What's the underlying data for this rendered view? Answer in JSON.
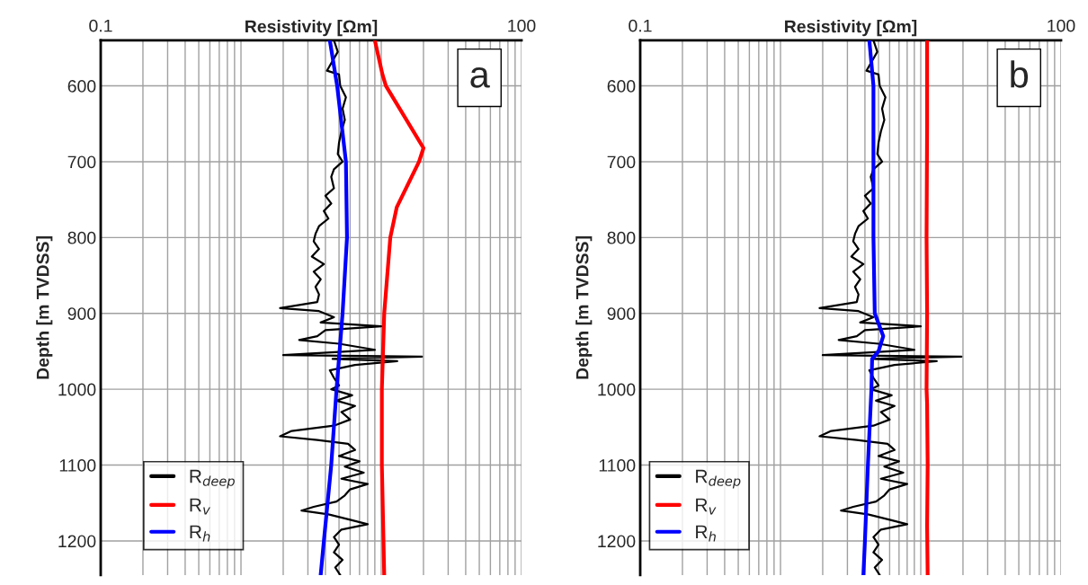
{
  "chart_data": [
    {
      "type": "line",
      "xlabel": "Resistivity [Ωm]",
      "ylabel": "Depth [m TVDSS]",
      "log": "x",
      "grid": true,
      "legend": "bottom left",
      "xlim": [
        0.1,
        100
      ],
      "ylim": [
        1245,
        540
      ],
      "xticks": [
        {
          "value": 0.1,
          "label": "0.1"
        },
        {
          "value": 0.2,
          "label": null
        },
        {
          "value": 0.3,
          "label": null
        },
        {
          "value": 0.4,
          "label": null
        },
        {
          "value": 0.5,
          "label": null
        },
        {
          "value": 0.6,
          "label": null
        },
        {
          "value": 0.7,
          "label": null
        },
        {
          "value": 0.8,
          "label": null
        },
        {
          "value": 0.9,
          "label": null
        },
        {
          "value": 1,
          "label": null
        },
        {
          "value": 2,
          "label": null
        },
        {
          "value": 3,
          "label": null
        },
        {
          "value": 4,
          "label": null
        },
        {
          "value": 5,
          "label": null
        },
        {
          "value": 6,
          "label": null
        },
        {
          "value": 7,
          "label": null
        },
        {
          "value": 8,
          "label": null
        },
        {
          "value": 9,
          "label": null
        },
        {
          "value": 10,
          "label": null
        },
        {
          "value": 20,
          "label": null
        },
        {
          "value": 30,
          "label": null
        },
        {
          "value": 40,
          "label": null
        },
        {
          "value": 50,
          "label": null
        },
        {
          "value": 60,
          "label": null
        },
        {
          "value": 70,
          "label": null
        },
        {
          "value": 80,
          "label": null
        },
        {
          "value": 90,
          "label": null
        },
        {
          "value": 100,
          "label": "100"
        }
      ],
      "yticks": [
        600,
        700,
        800,
        900,
        1000,
        1100,
        1200
      ],
      "annotations": [
        "a"
      ],
      "series": [
        {
          "name": "R$_{deep}$",
          "color": "#000000",
          "x": [
            4.6,
            4.9,
            4.1,
            5.0,
            5.1,
            5.6,
            5.3,
            5.5,
            5.2,
            5.0,
            4.9,
            5.3,
            4.6,
            4.4,
            4.6,
            4.0,
            4.4,
            3.9,
            4.2,
            3.6,
            3.4,
            3.3,
            3.6,
            3.2,
            3.9,
            3.3,
            3.7,
            3.4,
            3.6,
            3.5,
            1.9,
            3.6,
            4.6,
            3.7,
            10,
            4.0,
            3.5,
            2.6,
            5.0,
            9.0,
            2.0,
            19.5,
            4.5,
            13,
            6.5,
            4.3,
            4.6,
            5.0,
            4.4,
            6.2,
            4.8,
            6.5,
            5.2,
            6.0,
            4.6,
            2.3,
            1.9,
            3.5,
            5.8,
            6.5,
            5.0,
            7.0,
            5.5,
            7.5,
            5.2,
            8.0,
            6.0,
            5.5,
            4.8,
            3.3,
            2.7,
            4.2,
            6.0,
            8.0,
            5.2,
            4.6,
            5.0,
            4.6,
            5.3,
            4.7,
            5.1
          ],
          "values": [
            540,
            555,
            580,
            585,
            600,
            615,
            630,
            645,
            660,
            675,
            690,
            700,
            710,
            720,
            735,
            745,
            755,
            765,
            775,
            785,
            795,
            805,
            815,
            825,
            835,
            845,
            855,
            865,
            875,
            885,
            893,
            897,
            905,
            912,
            917,
            922,
            930,
            935,
            940,
            948,
            955,
            957,
            960,
            963,
            968,
            975,
            985,
            995,
            1000,
            1008,
            1015,
            1022,
            1030,
            1040,
            1048,
            1055,
            1062,
            1067,
            1072,
            1080,
            1088,
            1095,
            1102,
            1110,
            1118,
            1125,
            1132,
            1140,
            1148,
            1155,
            1160,
            1165,
            1172,
            1178,
            1185,
            1195,
            1205,
            1215,
            1225,
            1235,
            1245
          ]
        },
        {
          "name": "R$_{v}$",
          "color": "#ff0000",
          "x": [
            9.0,
            10.2,
            10.8,
            20,
            18.6,
            12.9,
            11.6,
            10.5,
            10.1,
            10.1,
            10.5
          ],
          "values": [
            540,
            585,
            600,
            682,
            700,
            760,
            800,
            900,
            1000,
            1100,
            1245
          ]
        },
        {
          "name": "R$_{h}$",
          "color": "#0000ff",
          "x": [
            4.3,
            4.85,
            5.6,
            5.7,
            5.3,
            4.8,
            4.4,
            3.9,
            3.7
          ],
          "values": [
            540,
            600,
            700,
            800,
            900,
            1000,
            1100,
            1200,
            1245
          ]
        }
      ]
    },
    {
      "type": "line",
      "xlabel": "Resistivity [Ωm]",
      "ylabel": "Depth [m TVDSS]",
      "log": "x",
      "grid": true,
      "legend": "bottom left",
      "xlim": [
        0.1,
        100
      ],
      "ylim": [
        1245,
        540
      ],
      "xticks": [
        {
          "value": 0.1,
          "label": "0.1"
        },
        {
          "value": 0.2,
          "label": null
        },
        {
          "value": 0.3,
          "label": null
        },
        {
          "value": 0.4,
          "label": null
        },
        {
          "value": 0.5,
          "label": null
        },
        {
          "value": 0.6,
          "label": null
        },
        {
          "value": 0.7,
          "label": null
        },
        {
          "value": 0.8,
          "label": null
        },
        {
          "value": 0.9,
          "label": null
        },
        {
          "value": 1,
          "label": null
        },
        {
          "value": 2,
          "label": null
        },
        {
          "value": 3,
          "label": null
        },
        {
          "value": 4,
          "label": null
        },
        {
          "value": 5,
          "label": null
        },
        {
          "value": 6,
          "label": null
        },
        {
          "value": 7,
          "label": null
        },
        {
          "value": 8,
          "label": null
        },
        {
          "value": 9,
          "label": null
        },
        {
          "value": 10,
          "label": null
        },
        {
          "value": 20,
          "label": null
        },
        {
          "value": 30,
          "label": null
        },
        {
          "value": 40,
          "label": null
        },
        {
          "value": 50,
          "label": null
        },
        {
          "value": 60,
          "label": null
        },
        {
          "value": 70,
          "label": null
        },
        {
          "value": 80,
          "label": null
        },
        {
          "value": 90,
          "label": null
        },
        {
          "value": 100,
          "label": "100"
        }
      ],
      "yticks": [
        600,
        700,
        800,
        900,
        1000,
        1100,
        1200
      ],
      "annotations": [
        "b"
      ],
      "series": [
        {
          "name": "R$_{deep}$",
          "color": "#000000",
          "x": [
            4.6,
            4.9,
            4.1,
            5.0,
            5.1,
            5.6,
            5.3,
            5.5,
            5.2,
            5.0,
            4.9,
            5.3,
            4.6,
            4.4,
            4.6,
            4.0,
            4.4,
            3.9,
            4.2,
            3.6,
            3.4,
            3.3,
            3.6,
            3.2,
            3.9,
            3.3,
            3.7,
            3.4,
            3.6,
            3.5,
            1.9,
            3.6,
            4.6,
            3.7,
            10,
            4.0,
            3.5,
            2.6,
            5.0,
            9.0,
            2.0,
            19.5,
            4.5,
            13,
            6.5,
            4.3,
            4.6,
            5.0,
            4.4,
            6.2,
            4.8,
            6.5,
            5.2,
            6.0,
            4.6,
            2.3,
            1.9,
            3.5,
            5.8,
            6.5,
            5.0,
            7.0,
            5.5,
            7.5,
            5.2,
            8.0,
            6.0,
            5.5,
            4.8,
            3.3,
            2.7,
            4.2,
            6.0,
            8.0,
            5.2,
            4.6,
            5.0,
            4.6,
            5.3,
            4.7,
            5.1
          ],
          "values": [
            540,
            555,
            580,
            585,
            600,
            615,
            630,
            645,
            660,
            675,
            690,
            700,
            710,
            720,
            735,
            745,
            755,
            765,
            775,
            785,
            795,
            805,
            815,
            825,
            835,
            845,
            855,
            865,
            875,
            885,
            893,
            897,
            905,
            912,
            917,
            922,
            930,
            935,
            940,
            948,
            955,
            957,
            960,
            963,
            968,
            975,
            985,
            995,
            1000,
            1008,
            1015,
            1022,
            1030,
            1040,
            1048,
            1055,
            1062,
            1067,
            1072,
            1080,
            1088,
            1095,
            1102,
            1110,
            1118,
            1125,
            1132,
            1140,
            1148,
            1155,
            1160,
            1165,
            1172,
            1178,
            1185,
            1195,
            1205,
            1215,
            1225,
            1235,
            1245
          ]
        },
        {
          "name": "R$_{v}$",
          "color": "#ff0000",
          "x": [
            11.1,
            11.1,
            11.0,
            11.1,
            11.0,
            11.1,
            11.2,
            11.1,
            11.2
          ],
          "values": [
            540,
            650,
            800,
            900,
            1000,
            1020,
            1100,
            1180,
            1245
          ]
        },
        {
          "name": "R$_{h}$",
          "color": "#0000ff",
          "x": [
            4.3,
            4.6,
            4.6,
            4.7,
            5.4,
            5.0,
            4.5,
            4.45,
            4.2,
            4.0,
            3.9
          ],
          "values": [
            540,
            600,
            800,
            900,
            930,
            950,
            960,
            1000,
            1100,
            1200,
            1245
          ]
        }
      ]
    }
  ]
}
